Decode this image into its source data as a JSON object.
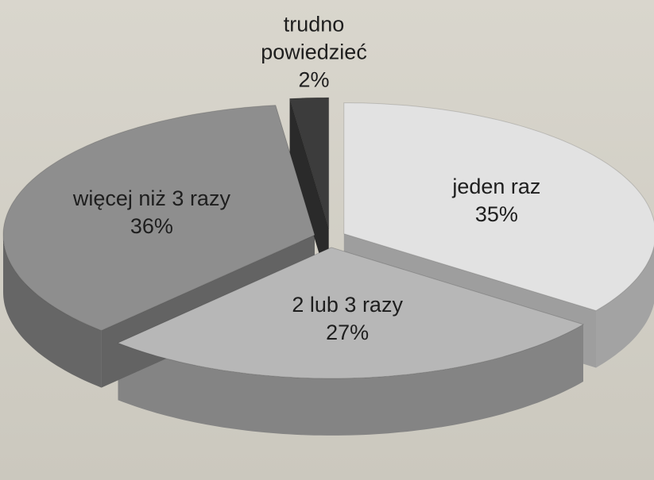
{
  "chart_data": {
    "type": "pie",
    "categories": [
      "jeden raz",
      "2 lub 3 razy",
      "więcej niż 3 razy",
      "trudno powiedzieć"
    ],
    "values": [
      35,
      27,
      36,
      2
    ],
    "value_labels": [
      "35%",
      "27%",
      "36%",
      "2%"
    ],
    "colors": [
      "#e2e2e2",
      "#b7b7b7",
      "#8e8e8e",
      "#3c3c3c"
    ]
  }
}
